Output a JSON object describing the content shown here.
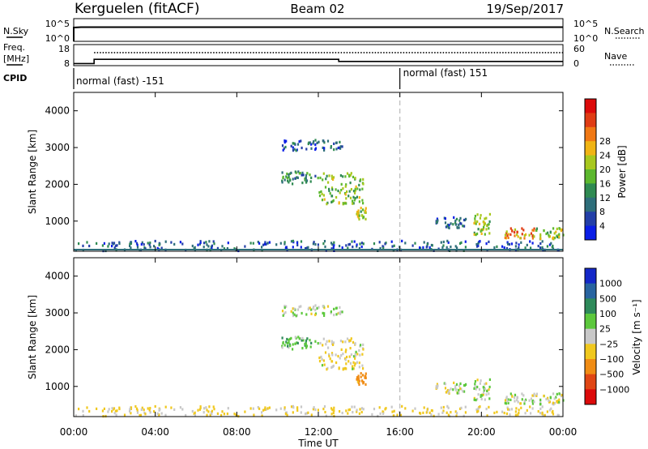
{
  "header": {
    "station": "Kerguelen (fitACF)",
    "beam": "Beam 02",
    "date": "19/Sep/2017"
  },
  "noise_panel": {
    "left_label": "N.Sky",
    "right_label": "N.Search",
    "left_ticks": [
      "10^5",
      "10^0"
    ],
    "right_ticks": [
      "10^5",
      "10^0"
    ]
  },
  "freq_panel": {
    "left_label_line1": "Freq.",
    "left_label_line2": "[MHz]",
    "right_label": "Nave",
    "left_ticks": [
      "18",
      "8"
    ],
    "right_ticks": [
      "60",
      "0"
    ]
  },
  "cpid": {
    "label": "CPID",
    "segments": [
      {
        "start_hour": 0,
        "text": "normal (fast) -151"
      },
      {
        "start_hour": 16,
        "text": "normal (fast) 151"
      }
    ]
  },
  "time_axis": {
    "label": "Time UT",
    "ticks": [
      "00:00",
      "04:00",
      "08:00",
      "12:00",
      "16:00",
      "20:00",
      "00:00"
    ]
  },
  "power_panel": {
    "ylabel": "Slant Range [km]",
    "yticks": [
      "1000",
      "2000",
      "3000",
      "4000"
    ],
    "colorbar_label": "Power [dB]",
    "colorbar_ticks": [
      "4",
      "8",
      "12",
      "16",
      "20",
      "24",
      "28"
    ],
    "colors": [
      "#0a1ee6",
      "#233fa8",
      "#2e6e7a",
      "#2f8a52",
      "#5cb82e",
      "#a8c81e",
      "#f0b414",
      "#f07814",
      "#e03c14",
      "#dc0a0a"
    ]
  },
  "velocity_panel": {
    "ylabel": "Slant Range [km]",
    "yticks": [
      "1000",
      "2000",
      "3000",
      "4000"
    ],
    "colorbar_label": "Velocity [m s⁻¹]",
    "colorbar_ticks": [
      "1000",
      "500",
      "100",
      "25",
      "−25",
      "−100",
      "−500",
      "−1000"
    ],
    "colors": [
      "#1428c8",
      "#2864a0",
      "#2e8a5a",
      "#5cc83c",
      "#c8c8c8",
      "#f0c81e",
      "#f08c14",
      "#e04614",
      "#dc0a0a"
    ]
  },
  "chart_data": {
    "type": "heatmap",
    "x_range_hours": [
      0,
      24
    ],
    "range_km": [
      180,
      4500
    ],
    "power_range_db": [
      0,
      30
    ],
    "velocity_range_ms": [
      -1000,
      1000
    ],
    "frequency_mhz": {
      "segments": [
        [
          0,
          1,
          9
        ],
        [
          1,
          13,
          11
        ],
        [
          13,
          24,
          10
        ]
      ]
    },
    "nave_level": 37,
    "noise_level": "high, near 10^5",
    "cpid_change_hour": 16,
    "echo_regions": [
      {
        "t0": 10.0,
        "t1": 12.0,
        "r0": 2000,
        "r1": 2350,
        "power": 10,
        "velocity": 60
      },
      {
        "t0": 12.0,
        "t1": 14.2,
        "r0": 1450,
        "r1": 2300,
        "power": 14,
        "velocity": -30
      },
      {
        "t0": 13.8,
        "t1": 14.3,
        "r0": 1000,
        "r1": 1350,
        "power": 16,
        "velocity": -150
      },
      {
        "t0": 10.2,
        "t1": 13.2,
        "r0": 2900,
        "r1": 3200,
        "power": 6,
        "velocity": 20
      },
      {
        "t0": 19.6,
        "t1": 20.4,
        "r0": 600,
        "r1": 1200,
        "power": 15,
        "velocity": 10
      },
      {
        "t0": 21.0,
        "t1": 22.6,
        "r0": 500,
        "r1": 800,
        "power": 22,
        "velocity": 10
      },
      {
        "t0": 22.6,
        "t1": 24.0,
        "r0": 500,
        "r1": 800,
        "power": 16,
        "velocity": 10
      },
      {
        "t0": 17.6,
        "t1": 19.2,
        "r0": 800,
        "r1": 1100,
        "power": 6,
        "velocity": 0
      },
      {
        "t0": 0.0,
        "t1": 24.0,
        "r0": 180,
        "r1": 450,
        "power": 6,
        "velocity": -40
      }
    ]
  }
}
